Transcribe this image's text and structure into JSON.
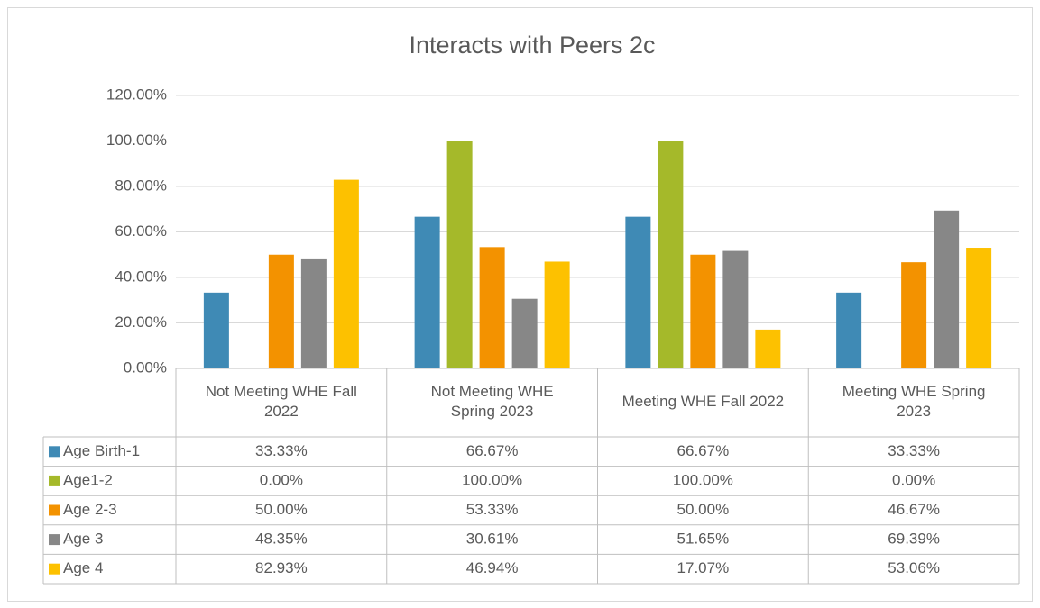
{
  "chart_data": {
    "type": "bar",
    "title": "Interacts with Peers 2c",
    "categories": [
      "Not Meeting WHE Fall 2022",
      "Not Meeting WHE Spring 2023",
      "Meeting WHE Fall 2022",
      "Meeting WHE Spring 2023"
    ],
    "series": [
      {
        "name": "Age Birth-1",
        "color": "#3f8ab5",
        "values": [
          33.33,
          66.67,
          66.67,
          33.33
        ],
        "value_labels": [
          "33.33%",
          "66.67%",
          "66.67%",
          "33.33%"
        ]
      },
      {
        "name": "Age1-2",
        "color": "#a5b92a",
        "values": [
          0,
          100,
          100,
          0
        ],
        "value_labels": [
          "0.00%",
          "100.00%",
          "100.00%",
          "0.00%"
        ]
      },
      {
        "name": "Age 2-3",
        "color": "#f39200",
        "values": [
          50,
          53.33,
          50,
          46.67
        ],
        "value_labels": [
          "50.00%",
          "53.33%",
          "50.00%",
          "46.67%"
        ]
      },
      {
        "name": "Age 3",
        "color": "#878787",
        "values": [
          48.35,
          30.61,
          51.65,
          69.39
        ],
        "value_labels": [
          "48.35%",
          "30.61%",
          "51.65%",
          "69.39%"
        ]
      },
      {
        "name": "Age 4",
        "color": "#fdc100",
        "values": [
          82.93,
          46.94,
          17.07,
          53.06
        ],
        "value_labels": [
          "82.93%",
          "46.94%",
          "17.07%",
          "53.06%"
        ]
      }
    ],
    "ylim": [
      0,
      120
    ],
    "yticks": [
      {
        "value": 0,
        "label": "0.00%"
      },
      {
        "value": 20,
        "label": "20.00%"
      },
      {
        "value": 40,
        "label": "40.00%"
      },
      {
        "value": 60,
        "label": "60.00%"
      },
      {
        "value": 80,
        "label": "80.00%"
      },
      {
        "value": 100,
        "label": "100.00%"
      },
      {
        "value": 120,
        "label": "120.00%"
      }
    ],
    "grid": true
  }
}
